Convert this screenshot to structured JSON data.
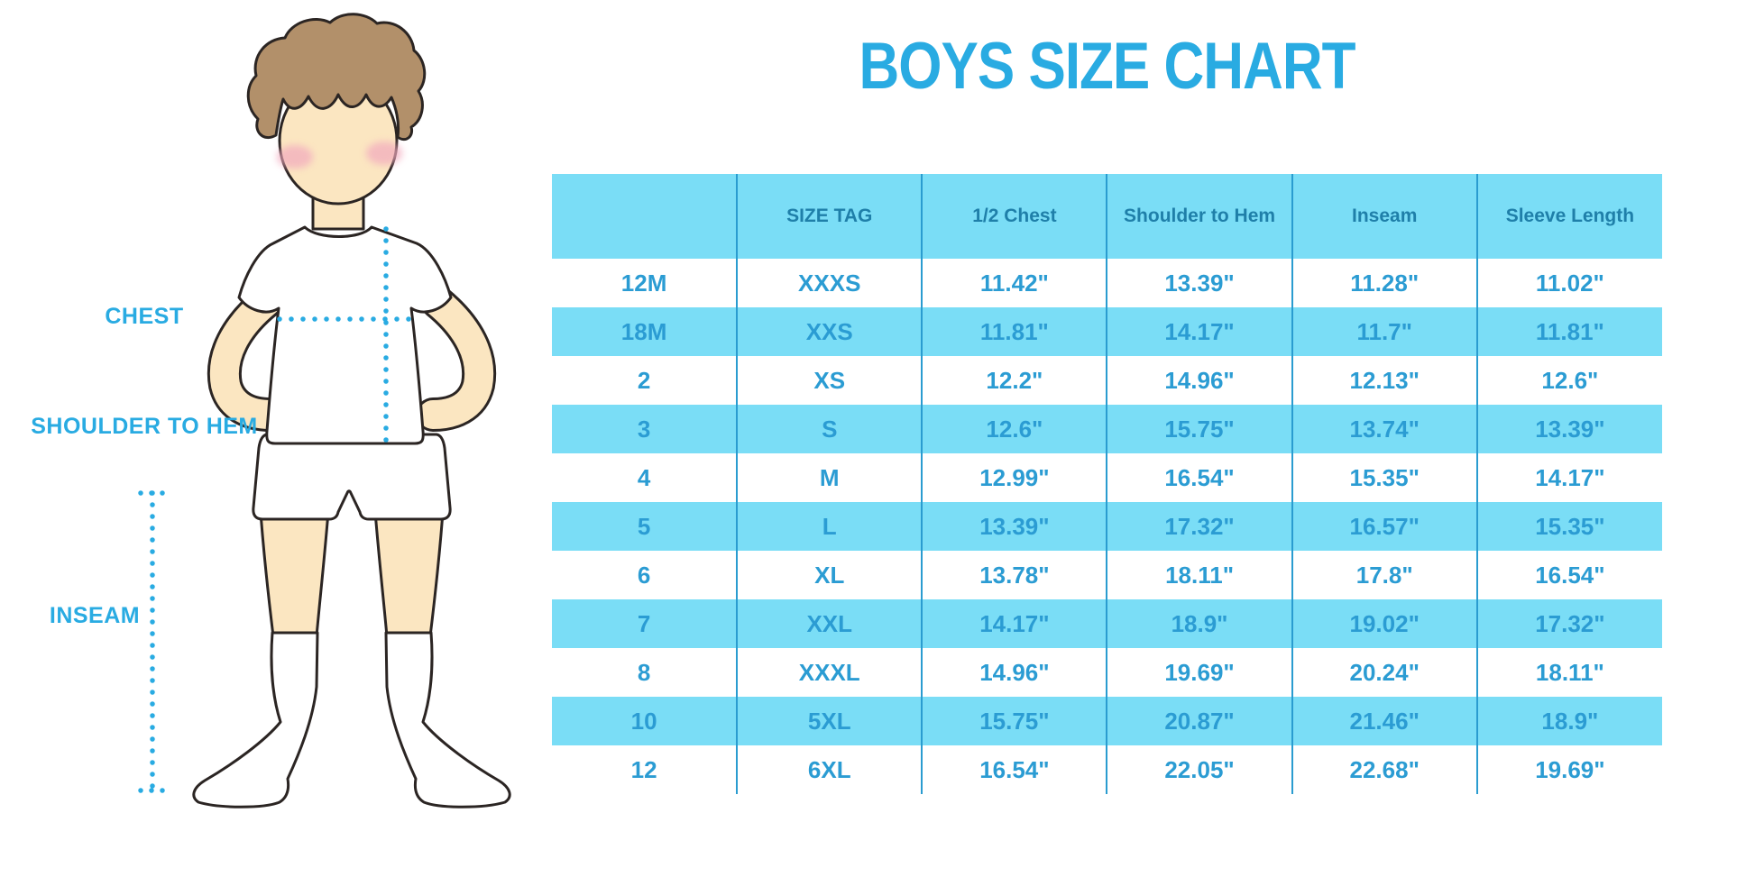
{
  "title": "BOYS SIZE CHART",
  "colors": {
    "accent_blue": "#29ABE2",
    "table_fill": "#7ADDF6",
    "table_line": "#2A9CD0",
    "header_text": "#1F7FA9",
    "cell_text": "#2B9CD3",
    "skin": "#FBE6C1",
    "hair": "#B2906A",
    "cheek": "#F2A9BE",
    "outline": "#2B2523"
  },
  "figure": {
    "labels": {
      "chest": "CHEST",
      "shoulder_to_hem": "SHOULDER TO HEM",
      "inseam": "INSEAM"
    }
  },
  "chart_data": {
    "type": "table",
    "title": "BOYS SIZE CHART",
    "columns": [
      "",
      "SIZE TAG",
      "1/2 Chest",
      "Shoulder to Hem",
      "Inseam",
      "Sleeve Length"
    ],
    "rows": [
      [
        "12M",
        "XXXS",
        "11.42\"",
        "13.39\"",
        "11.28\"",
        "11.02\""
      ],
      [
        "18M",
        "XXS",
        "11.81\"",
        "14.17\"",
        "11.7\"",
        "11.81\""
      ],
      [
        "2",
        "XS",
        "12.2\"",
        "14.96\"",
        "12.13\"",
        "12.6\""
      ],
      [
        "3",
        "S",
        "12.6\"",
        "15.75\"",
        "13.74\"",
        "13.39\""
      ],
      [
        "4",
        "M",
        "12.99\"",
        "16.54\"",
        "15.35\"",
        "14.17\""
      ],
      [
        "5",
        "L",
        "13.39\"",
        "17.32\"",
        "16.57\"",
        "15.35\""
      ],
      [
        "6",
        "XL",
        "13.78\"",
        "18.11\"",
        "17.8\"",
        "16.54\""
      ],
      [
        "7",
        "XXL",
        "14.17\"",
        "18.9\"",
        "19.02\"",
        "17.32\""
      ],
      [
        "8",
        "XXXL",
        "14.96\"",
        "19.69\"",
        "20.24\"",
        "18.11\""
      ],
      [
        "10",
        "5XL",
        "15.75\"",
        "20.87\"",
        "21.46\"",
        "18.9\""
      ],
      [
        "12",
        "6XL",
        "16.54\"",
        "22.05\"",
        "22.68\"",
        "19.69\""
      ]
    ]
  }
}
